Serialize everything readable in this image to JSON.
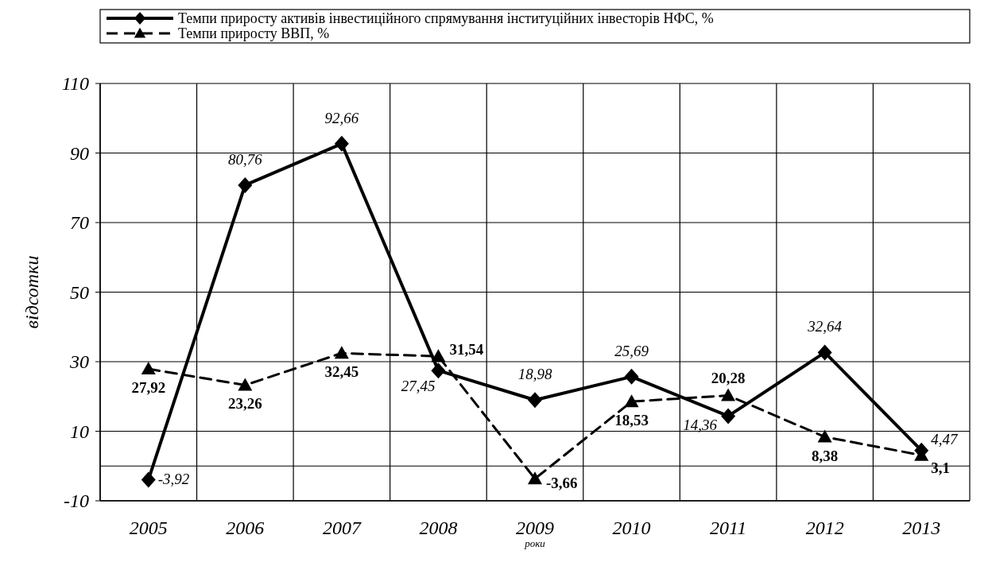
{
  "chart_data": {
    "type": "line",
    "xlabel": "роки",
    "ylabel": "відсотки",
    "categories": [
      "2005",
      "2006",
      "2007",
      "2008",
      "2009",
      "2010",
      "2011",
      "2012",
      "2013"
    ],
    "ylim": [
      -10,
      110
    ],
    "yticks": [
      -10,
      10,
      30,
      50,
      70,
      90,
      110
    ],
    "grid": true,
    "legend": "top",
    "ref_lines": [
      {
        "axis": "y",
        "value": 0,
        "color": "#000000"
      }
    ],
    "series": [
      {
        "name": "Темпи приросту активів інвестиційного спрямування інституційних інвесторів НФС, %",
        "color": "#000000",
        "marker": "diamond",
        "line_style": "solid",
        "values": [
          -3.92,
          80.76,
          92.66,
          27.45,
          18.98,
          25.69,
          14.36,
          32.64,
          4.47
        ],
        "value_labels": [
          "-3,92",
          "80,76",
          "92,66",
          "27,45",
          "18,98",
          "25,69",
          "14,36",
          "32,64",
          "4,47"
        ]
      },
      {
        "name": "Темпи приросту ВВП, %",
        "color": "#000000",
        "marker": "triangle",
        "line_style": "dashed",
        "values": [
          27.92,
          23.26,
          32.45,
          31.54,
          -3.66,
          18.53,
          20.28,
          8.38,
          3.1
        ],
        "value_labels": [
          "27,92",
          "23,26",
          "32,45",
          "31,54",
          "-3,66",
          "18,53",
          "20,28",
          "8,38",
          "3,1"
        ]
      }
    ]
  }
}
